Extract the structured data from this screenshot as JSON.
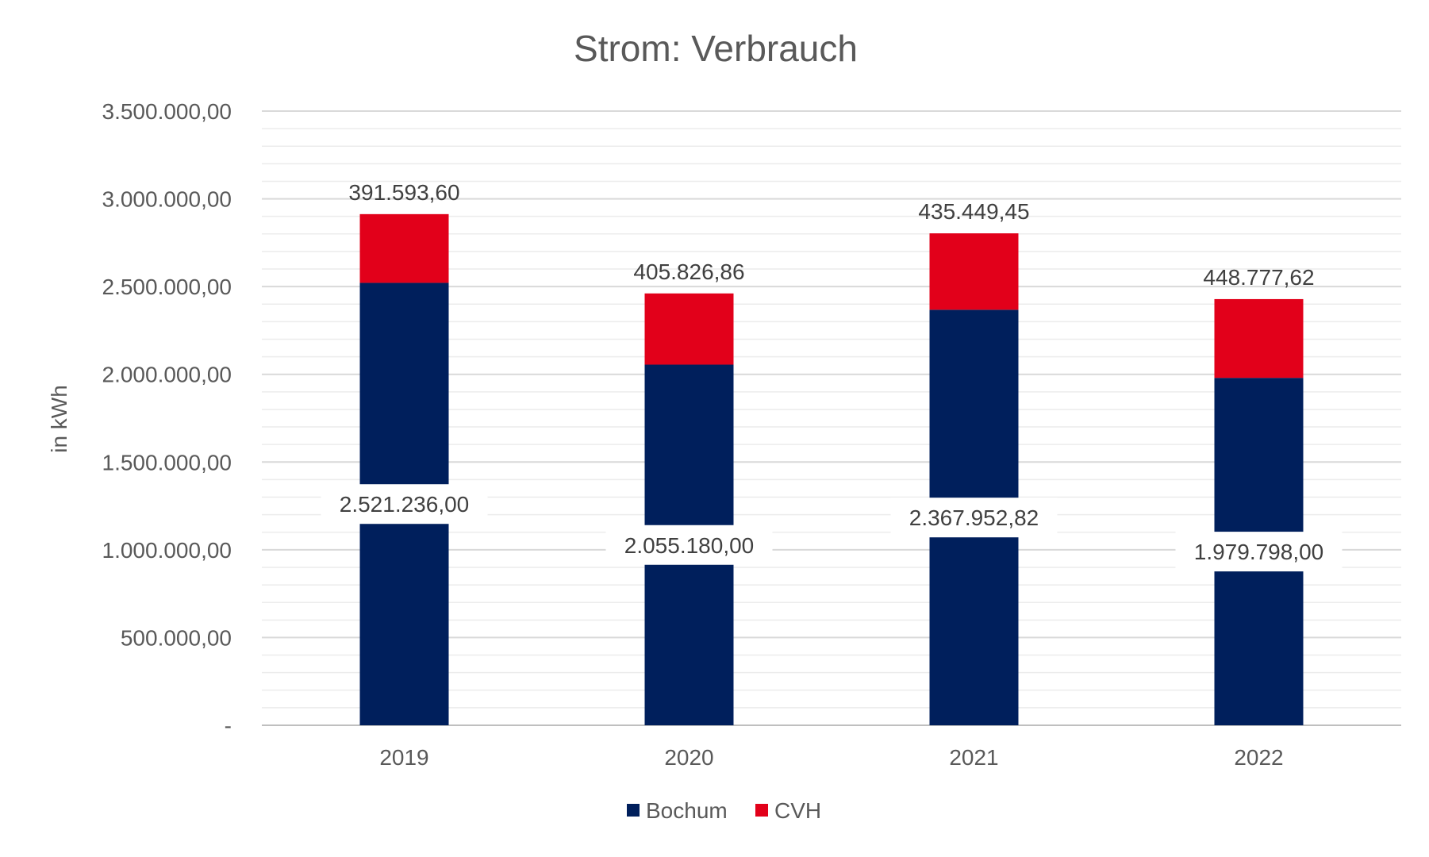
{
  "chart_data": {
    "type": "bar",
    "stacked": true,
    "title": "Strom: Verbrauch",
    "xlabel": "",
    "ylabel": "in kWh",
    "categories": [
      "2019",
      "2020",
      "2021",
      "2022"
    ],
    "series": [
      {
        "name": "Bochum",
        "color": "#001f5c",
        "values": [
          2521236.0,
          2055180.0,
          2367952.82,
          1979798.0
        ],
        "labels": [
          "2.521.236,00",
          "2.055.180,00",
          "2.367.952,82",
          "1.979.798,00"
        ]
      },
      {
        "name": "CVH",
        "color": "#e2001a",
        "values": [
          391593.6,
          405826.86,
          435449.45,
          448777.62
        ],
        "labels": [
          "391.593,60",
          "405.826,86",
          "435.449,45",
          "448.777,62"
        ]
      }
    ],
    "ylim": [
      0,
      3500000
    ],
    "yticks": [
      0,
      500000,
      1000000,
      1500000,
      2000000,
      2500000,
      3000000,
      3500000
    ],
    "ytick_labels": [
      "-",
      "500.000,00",
      "1.000.000,00",
      "1.500.000,00",
      "2.000.000,00",
      "2.500.000,00",
      "3.000.000,00",
      "3.500.000,00"
    ],
    "grid": true,
    "legend_position": "bottom"
  }
}
